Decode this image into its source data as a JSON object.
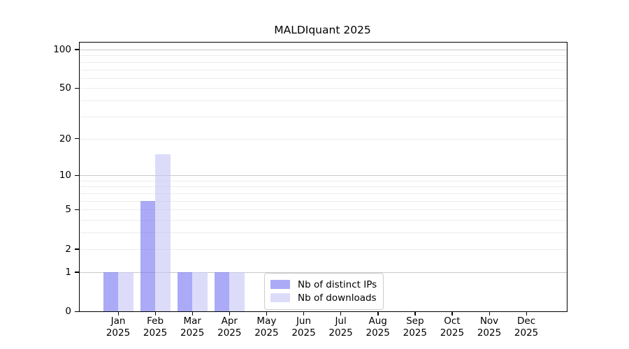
{
  "chart_data": {
    "type": "bar",
    "title": "MALDIquant 2025",
    "categories": [
      "Jan",
      "Feb",
      "Mar",
      "Apr",
      "May",
      "Jun",
      "Jul",
      "Aug",
      "Sep",
      "Oct",
      "Nov",
      "Dec"
    ],
    "x_year_label": "2025",
    "series": [
      {
        "name": "Nb of distinct IPs",
        "values": [
          1,
          6,
          1,
          1,
          0,
          0,
          0,
          0,
          0,
          0,
          0,
          0
        ],
        "bar_color": "rgba(113,113,240,0.6)",
        "swatch_color": "#aaaaf6"
      },
      {
        "name": "Nb of downloads",
        "values": [
          1,
          15,
          1,
          1,
          0,
          0,
          0,
          0,
          0,
          0,
          0,
          0
        ],
        "bar_color": "rgba(197,197,247,0.6)",
        "swatch_color": "#dcdcfa"
      }
    ],
    "yscale": "log1p",
    "ylim": [
      0,
      113
    ],
    "y_ticks": [
      0,
      1,
      2,
      5,
      10,
      20,
      50,
      100
    ],
    "gridlines": {
      "major": [
        1,
        10,
        100
      ],
      "minor": [
        2,
        3,
        4,
        5,
        6,
        7,
        8,
        9,
        20,
        30,
        40,
        50,
        60,
        70,
        80,
        90
      ]
    },
    "legend_position": "inside-bottom-center",
    "colors": {
      "major_grid": "#c9c9c9",
      "minor_grid": "#ececec",
      "spine": "#000000",
      "legend_border": "#cccccc",
      "background": "#ffffff"
    }
  }
}
